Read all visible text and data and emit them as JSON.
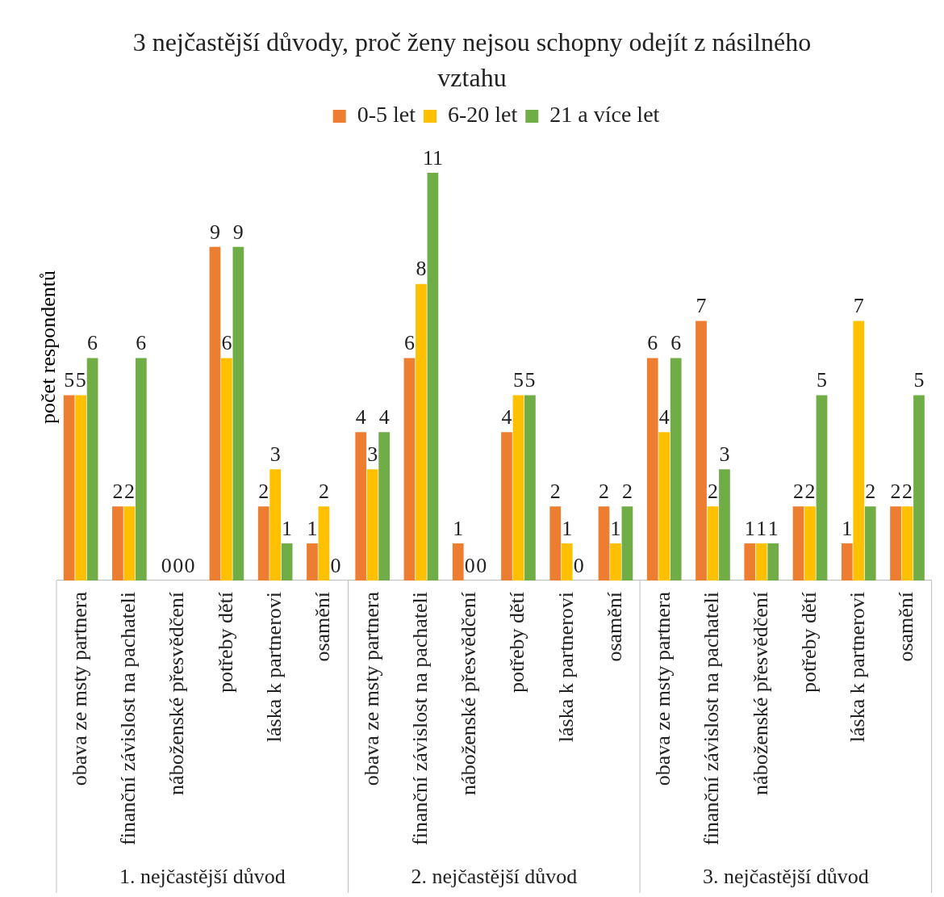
{
  "chart_data": {
    "type": "bar",
    "title": "3 nejčastější důvody, proč ženy nejsou schopny odejít z násilného vztahu",
    "ylabel": "počet respondentů",
    "categories": [
      "obava ze msty partnera",
      "finanční závislost na pachateli",
      "náboženské přesvědčení",
      "potřeby dětí",
      "láska k partnerovi",
      "osamění",
      "obava ze msty partnera",
      "finanční závislost na pachateli",
      "náboženské přesvědčení",
      "potřeby dětí",
      "láska k partnerovi",
      "osamění",
      "obava ze msty partnera",
      "finanční závislost na pachateli",
      "náboženské přesvědčení",
      "potřeby dětí",
      "láska k partnerovi",
      "osamění"
    ],
    "series": [
      {
        "name": "0-5 let",
        "color": "#ed7d31",
        "values": [
          5,
          2,
          0,
          9,
          2,
          1,
          4,
          6,
          1,
          4,
          2,
          2,
          6,
          7,
          1,
          2,
          1,
          2
        ]
      },
      {
        "name": "6-20 let",
        "color": "#ffc000",
        "values": [
          5,
          2,
          0,
          6,
          3,
          2,
          3,
          8,
          0,
          5,
          1,
          1,
          4,
          2,
          1,
          2,
          7,
          2
        ]
      },
      {
        "name": "21 a více let",
        "color": "#70ad47",
        "values": [
          6,
          6,
          0,
          9,
          1,
          0,
          4,
          11,
          0,
          5,
          0,
          2,
          6,
          3,
          1,
          5,
          2,
          5
        ]
      }
    ],
    "annotations": [
      "1. nejčastější důvod",
      "2. nejčastější důvod",
      "3. nejčastější důvod"
    ],
    "data_labels": true,
    "grid": false,
    "legend": "top"
  }
}
